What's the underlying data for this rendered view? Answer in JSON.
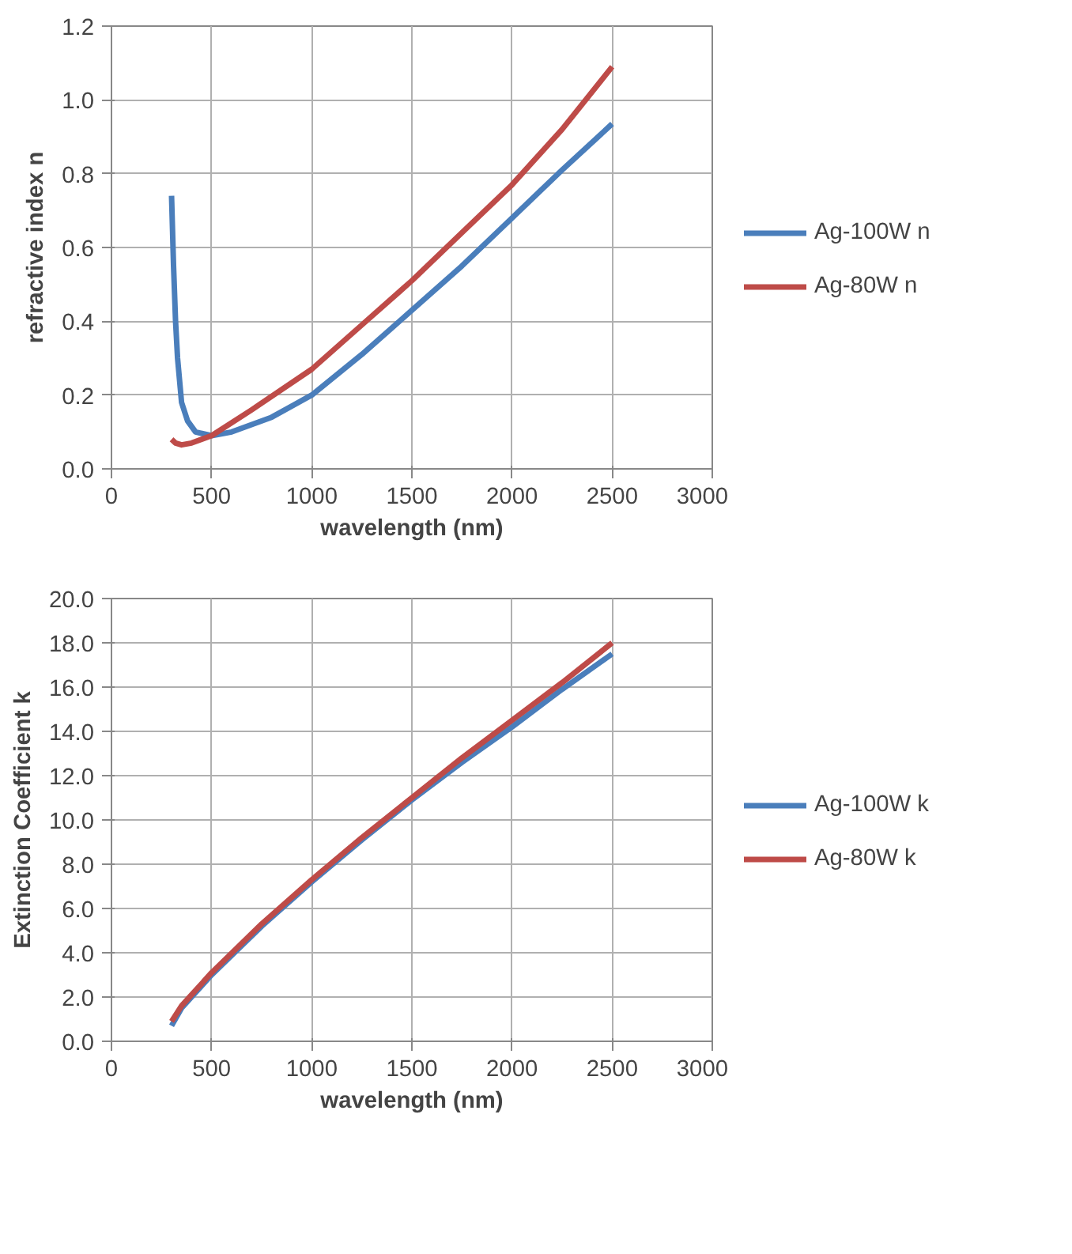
{
  "chart_data": [
    {
      "type": "line",
      "xlabel": "wavelength (nm)",
      "ylabel": "refractive index n",
      "xlim": [
        0,
        3000
      ],
      "ylim": [
        0,
        1.2
      ],
      "xticks": [
        0,
        500,
        1000,
        1500,
        2000,
        2500,
        3000
      ],
      "yticks": [
        {
          "value": 0,
          "label": "0.0"
        },
        {
          "value": 0.2,
          "label": "0.2"
        },
        {
          "value": 0.4,
          "label": "0.4"
        },
        {
          "value": 0.6,
          "label": "0.6"
        },
        {
          "value": 0.8,
          "label": "0.8"
        },
        {
          "value": 1.0,
          "label": "1.0"
        },
        {
          "value": 1.2,
          "label": "1.2"
        }
      ],
      "grid": true,
      "legend": "right",
      "marker": "none",
      "line_style": "solid",
      "series": [
        {
          "name": "Ag-100W n",
          "color": "#4a7ebb",
          "x": [
            300,
            310,
            320,
            330,
            350,
            380,
            420,
            500,
            600,
            800,
            1000,
            1250,
            1500,
            1750,
            2000,
            2250,
            2500
          ],
          "values": [
            0.74,
            0.55,
            0.4,
            0.3,
            0.18,
            0.13,
            0.1,
            0.09,
            0.1,
            0.14,
            0.2,
            0.31,
            0.43,
            0.55,
            0.68,
            0.81,
            0.935
          ]
        },
        {
          "name": "Ag-80W n",
          "color": "#be4b48",
          "x": [
            300,
            320,
            350,
            400,
            500,
            700,
            1000,
            1250,
            1500,
            1750,
            2000,
            2250,
            2500
          ],
          "values": [
            0.08,
            0.07,
            0.065,
            0.07,
            0.09,
            0.16,
            0.27,
            0.39,
            0.51,
            0.64,
            0.77,
            0.92,
            1.09
          ]
        }
      ]
    },
    {
      "type": "line",
      "xlabel": "wavelength (nm)",
      "ylabel": "Extinction Coefficient k",
      "xlim": [
        0,
        3000
      ],
      "ylim": [
        0,
        20
      ],
      "xticks": [
        0,
        500,
        1000,
        1500,
        2000,
        2500,
        3000
      ],
      "yticks": [
        {
          "value": 0,
          "label": "0.0"
        },
        {
          "value": 2,
          "label": "2.0"
        },
        {
          "value": 4,
          "label": "4.0"
        },
        {
          "value": 6,
          "label": "6.0"
        },
        {
          "value": 8,
          "label": "8.0"
        },
        {
          "value": 10,
          "label": "10.0"
        },
        {
          "value": 12,
          "label": "12.0"
        },
        {
          "value": 14,
          "label": "14.0"
        },
        {
          "value": 16,
          "label": "16.0"
        },
        {
          "value": 18,
          "label": "18.0"
        },
        {
          "value": 20,
          "label": "20.0"
        }
      ],
      "grid": true,
      "legend": "right",
      "marker": "none",
      "line_style": "solid",
      "series": [
        {
          "name": "Ag-100W k",
          "color": "#4a7ebb",
          "x": [
            300,
            350,
            400,
            500,
            750,
            1000,
            1250,
            1500,
            1750,
            2000,
            2250,
            2500
          ],
          "values": [
            0.7,
            1.5,
            2.0,
            3.0,
            5.2,
            7.2,
            9.1,
            10.9,
            12.6,
            14.2,
            15.9,
            17.5
          ]
        },
        {
          "name": "Ag-80W k",
          "color": "#be4b48",
          "x": [
            300,
            350,
            400,
            500,
            750,
            1000,
            1250,
            1500,
            1750,
            2000,
            2250,
            2500
          ],
          "values": [
            0.9,
            1.6,
            2.1,
            3.1,
            5.3,
            7.3,
            9.2,
            11.0,
            12.8,
            14.5,
            16.2,
            18.0
          ]
        }
      ]
    }
  ]
}
